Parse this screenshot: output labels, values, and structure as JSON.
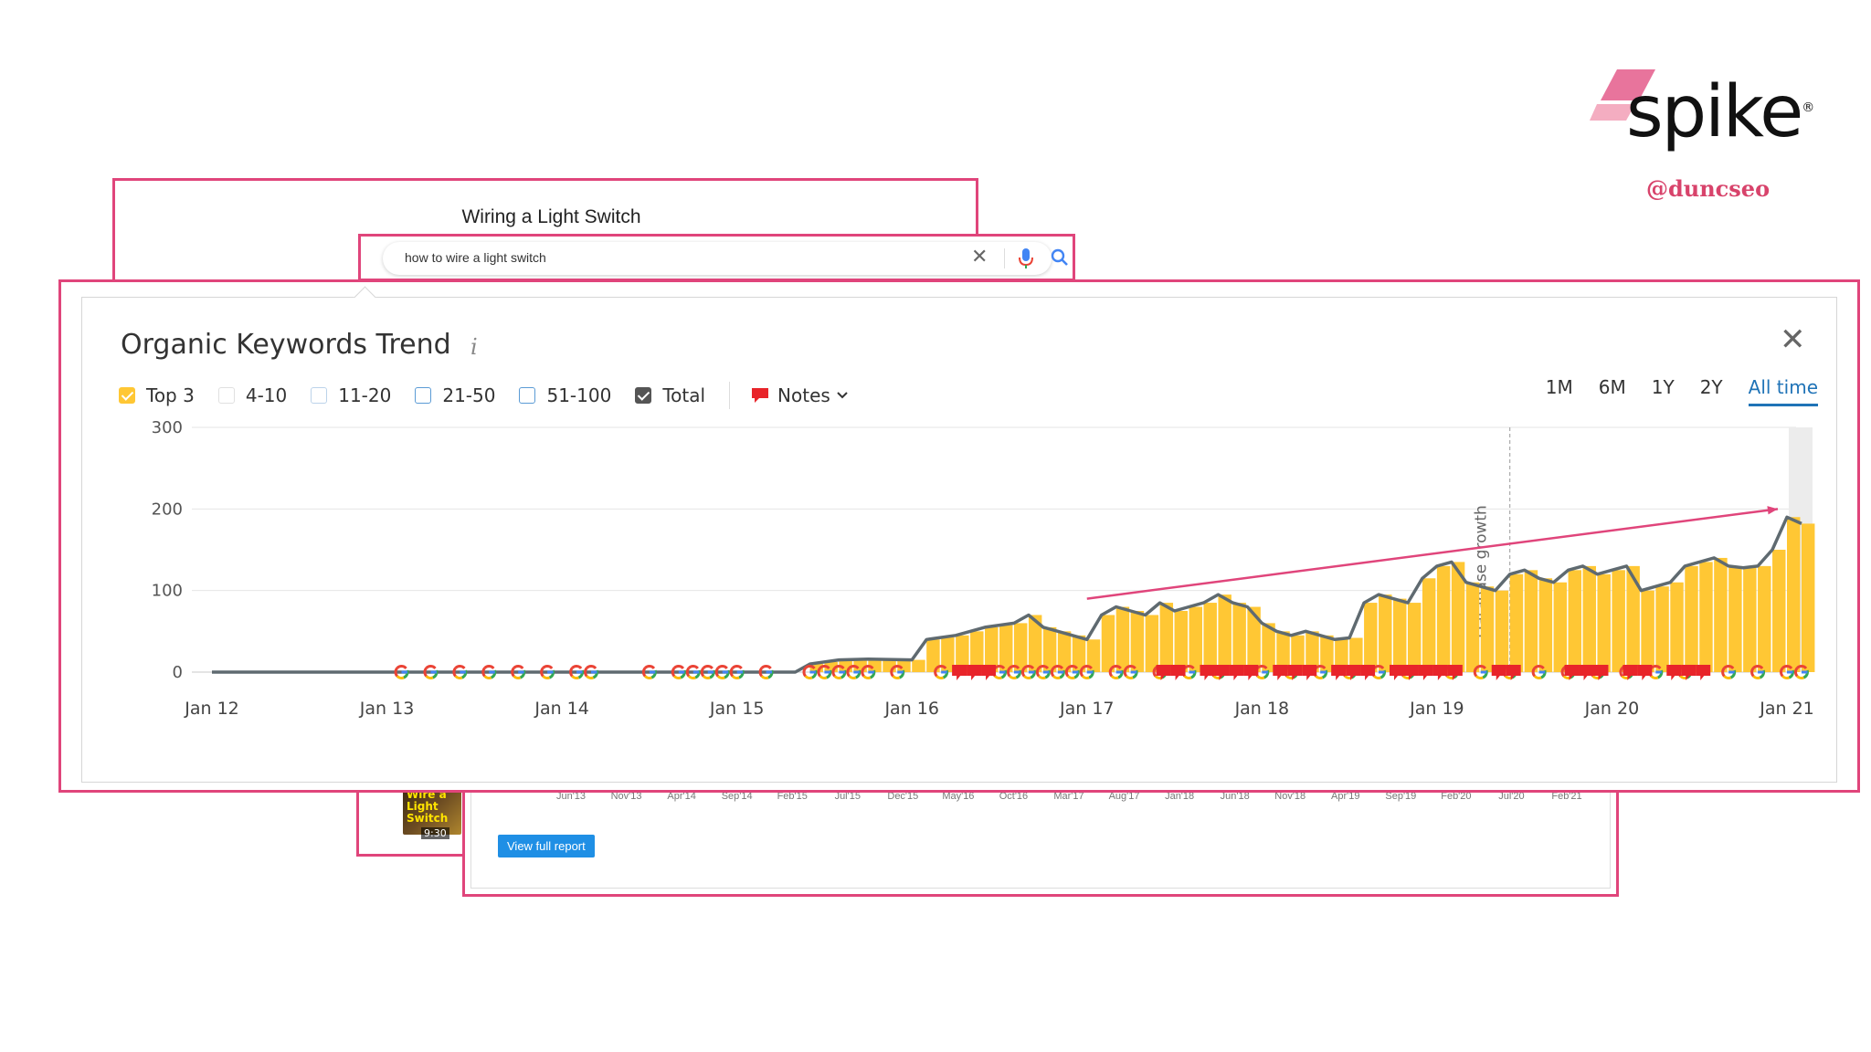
{
  "brand": {
    "wordmark": "spike",
    "handle": "@duncseo"
  },
  "article": {
    "title": "Wiring a Light Switch"
  },
  "search": {
    "query": "how to wire a light switch"
  },
  "thumbnail": {
    "label": "Wire a Light Switch",
    "duration": "9:30"
  },
  "report": {
    "axis_labels": [
      "Jun'13",
      "Nov'13",
      "Apr'14",
      "Sep'14",
      "Feb'15",
      "Jul'15",
      "Dec'15",
      "May'16",
      "Oct'16",
      "Mar'17",
      "Aug'17",
      "Jan'18",
      "Jun'18",
      "Nov'18",
      "Apr'19",
      "Sep'19",
      "Feb'20",
      "Jul'20",
      "Feb'21"
    ],
    "button_label": "View full report"
  },
  "panel": {
    "title": "Organic Keywords Trend",
    "info_symbol": "i",
    "close_symbol": "✕",
    "filters": [
      {
        "label": "Top 3",
        "style": "yellow",
        "checked": true
      },
      {
        "label": "4-10",
        "style": "light",
        "checked": false
      },
      {
        "label": "11-20",
        "style": "blue-light",
        "checked": false
      },
      {
        "label": "21-50",
        "style": "blue",
        "checked": false
      },
      {
        "label": "51-100",
        "style": "blue",
        "checked": false
      },
      {
        "label": "Total",
        "style": "dark",
        "checked": true
      }
    ],
    "notes_label": "Notes",
    "ranges": [
      "1M",
      "6M",
      "1Y",
      "2Y",
      "All time"
    ],
    "active_range": "All time"
  },
  "colors": {
    "accent": "#e0457b",
    "bar": "#ffc734",
    "line": "#5f6a70",
    "trend_arrow": "#e0457b",
    "note": "#e8242a",
    "active": "#1f73b7"
  },
  "chart_data": {
    "type": "area",
    "title": "Organic Keywords Trend",
    "ylim": [
      0,
      300
    ],
    "yticks": [
      0,
      100,
      200,
      300
    ],
    "x_range": [
      "Jan 12",
      "Jan 21"
    ],
    "xticks": [
      "Jan 12",
      "Jan 13",
      "Jan 14",
      "Jan 15",
      "Jan 16",
      "Jan 17",
      "Jan 18",
      "Jan 19",
      "Jan 20",
      "Jan 21"
    ],
    "annotation": {
      "label": "Database growth",
      "date": "Jun 19"
    },
    "series": [
      {
        "name": "Total",
        "points": [
          [
            "Jan 12",
            0
          ],
          [
            "Jan 15",
            0
          ],
          [
            "May 15",
            0
          ],
          [
            "Jun 15",
            10
          ],
          [
            "Aug 15",
            15
          ],
          [
            "Oct 15",
            16
          ],
          [
            "Jan 16",
            15
          ],
          [
            "Feb 16",
            40
          ],
          [
            "Apr 16",
            45
          ],
          [
            "Jun 16",
            55
          ],
          [
            "Aug 16",
            60
          ],
          [
            "Sep 16",
            70
          ],
          [
            "Oct 16",
            55
          ],
          [
            "Nov 16",
            50
          ],
          [
            "Dec 16",
            45
          ],
          [
            "Jan 17",
            40
          ],
          [
            "Feb 17",
            70
          ],
          [
            "Mar 17",
            80
          ],
          [
            "Apr 17",
            75
          ],
          [
            "May 17",
            70
          ],
          [
            "Jun 17",
            85
          ],
          [
            "Jul 17",
            75
          ],
          [
            "Aug 17",
            80
          ],
          [
            "Sep 17",
            85
          ],
          [
            "Oct 17",
            95
          ],
          [
            "Nov 17",
            85
          ],
          [
            "Dec 17",
            80
          ],
          [
            "Jan 18",
            60
          ],
          [
            "Feb 18",
            50
          ],
          [
            "Mar 18",
            45
          ],
          [
            "Apr 18",
            50
          ],
          [
            "May 18",
            45
          ],
          [
            "Jun 18",
            40
          ],
          [
            "Jul 18",
            42
          ],
          [
            "Aug 18",
            85
          ],
          [
            "Sep 18",
            95
          ],
          [
            "Oct 18",
            90
          ],
          [
            "Nov 18",
            85
          ],
          [
            "Dec 18",
            115
          ],
          [
            "Jan 19",
            130
          ],
          [
            "Feb 19",
            135
          ],
          [
            "Mar 19",
            110
          ],
          [
            "Apr 19",
            105
          ],
          [
            "May 19",
            100
          ],
          [
            "Jun 19",
            120
          ],
          [
            "Jul 19",
            125
          ],
          [
            "Aug 19",
            115
          ],
          [
            "Sep 19",
            110
          ],
          [
            "Oct 19",
            125
          ],
          [
            "Nov 19",
            130
          ],
          [
            "Dec 19",
            120
          ],
          [
            "Jan 20",
            125
          ],
          [
            "Feb 20",
            130
          ],
          [
            "Mar 20",
            100
          ],
          [
            "Apr 20",
            105
          ],
          [
            "May 20",
            110
          ],
          [
            "Jun 20",
            130
          ],
          [
            "Jul 20",
            135
          ],
          [
            "Aug 20",
            140
          ],
          [
            "Sep 20",
            130
          ],
          [
            "Oct 20",
            128
          ],
          [
            "Nov 20",
            130
          ],
          [
            "Dec 20",
            150
          ],
          [
            "Jan 21",
            190
          ],
          [
            "Feb 21",
            182
          ]
        ]
      }
    ],
    "trend_arrow": {
      "from": [
        "Jan 17",
        90
      ],
      "to": [
        "Jan 21",
        200
      ]
    },
    "google_update_markers": [
      "Feb 13",
      "Apr 13",
      "Jun 13",
      "Aug 13",
      "Oct 13",
      "Dec 13",
      "Feb 14",
      "Mar 14",
      "Jul 14",
      "Sep 14",
      "Oct 14",
      "Nov 14",
      "Dec 14",
      "Jan 15",
      "Mar 15",
      "Jun 15",
      "Jul 15",
      "Aug 15",
      "Sep 15",
      "Oct 15",
      "Dec 15",
      "Mar 16",
      "Jul 16",
      "Aug 16",
      "Sep 16",
      "Oct 16",
      "Nov 16",
      "Dec 16",
      "Jan 17",
      "Mar 17",
      "Apr 17",
      "Jun 17",
      "Aug 17",
      "Oct 17",
      "Jan 18",
      "Mar 18",
      "May 18",
      "Jul 18",
      "Sep 18",
      "Nov 18",
      "Feb 19",
      "Apr 19",
      "Jun 19",
      "Aug 19",
      "Oct 19",
      "Dec 19",
      "Feb 20",
      "Apr 20",
      "Jun 20",
      "Sep 20",
      "Nov 20",
      "Jan 21",
      "Feb 21"
    ],
    "note_markers": [
      "Apr 16",
      "May 16",
      "Jun 16",
      "Jun 17",
      "Jul 17",
      "Sep 17",
      "Oct 17",
      "Nov 17",
      "Dec 17",
      "Feb 18",
      "Mar 18",
      "Apr 18",
      "Jun 18",
      "Jul 18",
      "Aug 18",
      "Oct 18",
      "Nov 18",
      "Dec 18",
      "Jan 19",
      "Feb 19",
      "May 19",
      "Jun 19",
      "Oct 19",
      "Nov 19",
      "Dec 19",
      "Feb 20",
      "Mar 20",
      "May 20",
      "Jun 20",
      "Jul 20"
    ]
  }
}
